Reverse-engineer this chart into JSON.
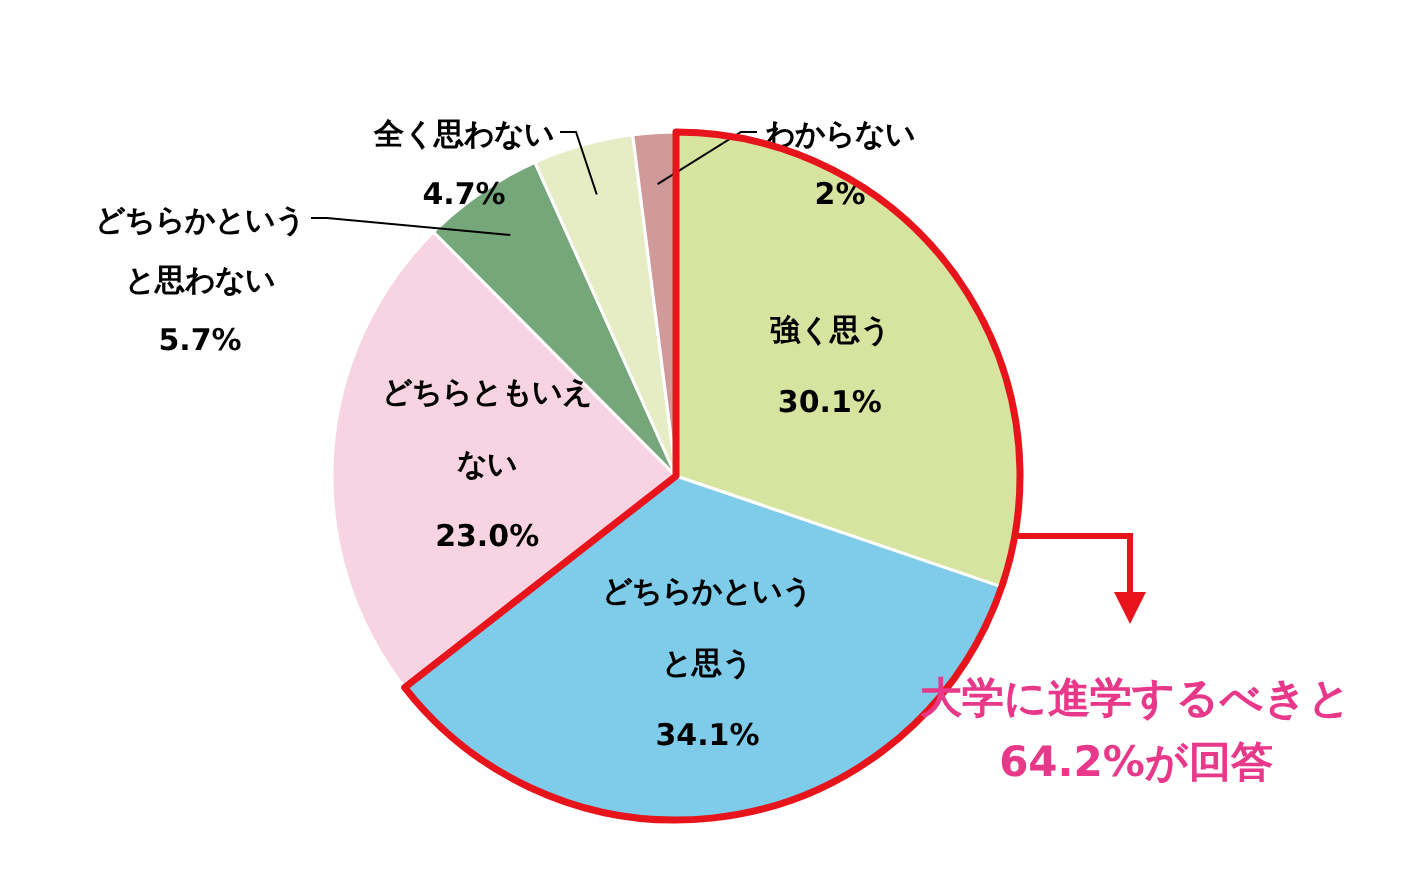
{
  "chart_data": {
    "type": "pie",
    "categories": [
      "強く思う",
      "どちらかというと思う",
      "どちらともいえない",
      "どちらかというと思わない",
      "全く思わない",
      "わからない"
    ],
    "values": [
      30.1,
      34.1,
      23.0,
      5.7,
      4.7,
      2
    ],
    "colors": [
      "#d7e4a0",
      "#7ecbea",
      "#f8d3e1",
      "#76a77a",
      "#e6edc4",
      "#d09a9a"
    ],
    "value_labels": [
      "30.1%",
      "34.1%",
      "23.0%",
      "5.7%",
      "4.7%",
      "2%"
    ],
    "annotations": [
      "大学に進学するべきと64.2%が回答"
    ],
    "legend": false
  }
}
